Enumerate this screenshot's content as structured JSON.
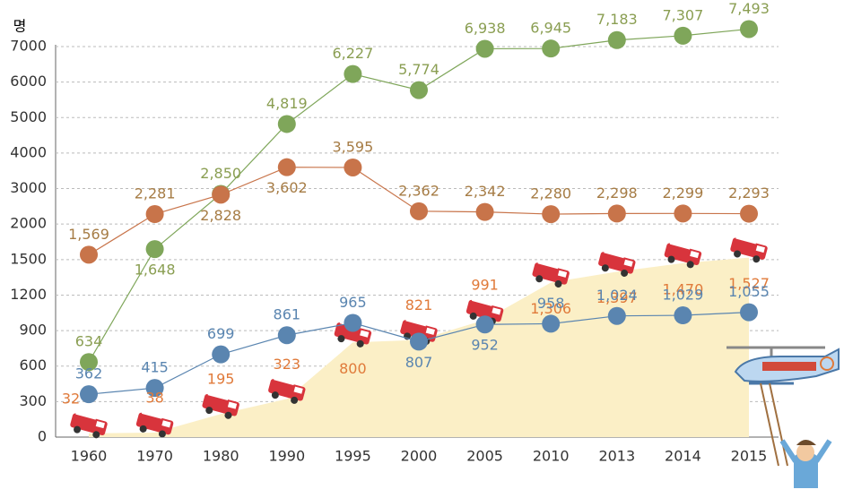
{
  "chart_data": {
    "type": "line",
    "ylabel": "명",
    "categories": [
      "1960",
      "1970",
      "1980",
      "1990",
      "1995",
      "2000",
      "2005",
      "2010",
      "2013",
      "2014",
      "2015"
    ],
    "ylim": [
      0,
      7000
    ],
    "yticks": [
      0,
      300,
      600,
      900,
      1200,
      1500,
      2000,
      3000,
      4000,
      5000,
      6000,
      7000
    ],
    "y_scale": "even-ticks",
    "grid": true,
    "series": [
      {
        "kind": "area",
        "color": "#fbefc6",
        "label_color": "#e07a3a",
        "values": [
          32,
          38,
          195,
          323,
          800,
          821,
          991,
          1306,
          1397,
          1470,
          1527
        ],
        "value_labels": [
          "32",
          "38",
          "195",
          "323",
          "800",
          "821",
          "991",
          "1,306",
          "1,397",
          "1,470",
          "1,527"
        ]
      },
      {
        "kind": "line",
        "color": "#7fa65a",
        "label_color": "#8a9e52",
        "values": [
          634,
          1648,
          2850,
          4819,
          6227,
          5774,
          6938,
          6945,
          7183,
          7307,
          7493
        ],
        "value_labels": [
          "634",
          "1,648",
          "2,850",
          "4,819",
          "6,227",
          "5,774",
          "6,938",
          "6,945",
          "7,183",
          "7,307",
          "7,493"
        ]
      },
      {
        "kind": "line",
        "color": "#c8744a",
        "label_color": "#a67c45",
        "values": [
          1569,
          2281,
          2828,
          3602,
          3595,
          2362,
          2342,
          2280,
          2298,
          2299,
          2293
        ],
        "value_labels": [
          "1,569",
          "2,281",
          "2,828",
          "3,602",
          "3,595",
          "2,362",
          "2,342",
          "2,280",
          "2,298",
          "2,299",
          "2,293"
        ]
      },
      {
        "kind": "line",
        "color": "#5a85b0",
        "label_color": "#5a85b0",
        "values": [
          362,
          415,
          699,
          861,
          965,
          807,
          952,
          958,
          1024,
          1029,
          1055
        ],
        "value_labels": [
          "362",
          "415",
          "699",
          "861",
          "965",
          "807",
          "952",
          "958",
          "1,024",
          "1,029",
          "1,055"
        ]
      }
    ]
  }
}
